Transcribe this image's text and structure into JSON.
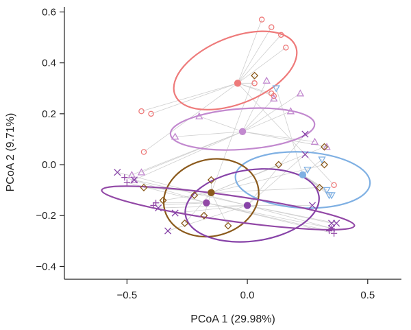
{
  "chart_data": {
    "type": "scatter",
    "title": "",
    "xlabel": "PCoA 1 (29.98%)",
    "ylabel": "PCoA 2 (9.71%)",
    "xlim": [
      -0.76,
      0.64
    ],
    "ylim": [
      -0.45,
      0.62
    ],
    "xticks": [
      -0.5,
      0.0,
      0.5
    ],
    "xtick_labels": [
      "−0.5",
      "0.0",
      "0.5"
    ],
    "yticks": [
      -0.4,
      -0.2,
      0.0,
      0.2,
      0.4,
      0.6
    ],
    "ytick_labels": [
      "−0.4",
      "−0.2",
      "0.0",
      "0.2",
      "0.4",
      "0.6"
    ],
    "grid": false,
    "legend": "none",
    "series": [
      {
        "marker": "circle",
        "color": "#ee7a7a",
        "centroid": [
          -0.04,
          0.32
        ],
        "ellipse": {
          "cx": -0.05,
          "cy": 0.37,
          "rx": 0.27,
          "ry": 0.13,
          "angle": 22
        },
        "points": [
          [
            0.06,
            0.57
          ],
          [
            0.1,
            0.54
          ],
          [
            0.14,
            0.51
          ],
          [
            0.16,
            0.46
          ],
          [
            0.03,
            0.32
          ],
          [
            0.1,
            0.28
          ],
          [
            0.11,
            0.27
          ],
          [
            -0.44,
            0.21
          ],
          [
            -0.4,
            0.2
          ],
          [
            -0.43,
            0.05
          ],
          [
            0.36,
            -0.08
          ]
        ]
      },
      {
        "marker": "triangle-up",
        "color": "#c289cf",
        "centroid": [
          -0.02,
          0.13
        ],
        "ellipse": {
          "cx": -0.02,
          "cy": 0.14,
          "rx": 0.3,
          "ry": 0.08,
          "angle": 4
        },
        "points": [
          [
            0.08,
            0.33
          ],
          [
            0.22,
            0.28
          ],
          [
            0.11,
            0.26
          ],
          [
            0.18,
            0.21
          ],
          [
            -0.2,
            0.19
          ],
          [
            -0.3,
            0.11
          ],
          [
            0.28,
            0.09
          ],
          [
            0.33,
            0.07
          ],
          [
            -0.44,
            -0.03
          ],
          [
            -0.48,
            -0.04
          ],
          [
            -0.47,
            -0.06
          ]
        ]
      },
      {
        "marker": "triangle-down",
        "color": "#7fb0e3",
        "centroid": [
          0.23,
          -0.04
        ],
        "ellipse": {
          "cx": 0.23,
          "cy": -0.06,
          "rx": 0.28,
          "ry": 0.11,
          "angle": -3
        },
        "points": [
          [
            0.12,
            0.3
          ],
          [
            0.31,
            0.02
          ],
          [
            0.25,
            -0.02
          ],
          [
            0.33,
            -0.1
          ],
          [
            0.35,
            -0.12
          ],
          [
            0.34,
            -0.12
          ]
        ]
      },
      {
        "marker": "diamond",
        "color": "#8b5a1c",
        "centroid": [
          -0.15,
          -0.11
        ],
        "ellipse": {
          "cx": -0.15,
          "cy": -0.13,
          "rx": 0.2,
          "ry": 0.15,
          "angle": 15
        },
        "points": [
          [
            0.03,
            0.35
          ],
          [
            0.13,
            0.0
          ],
          [
            0.32,
            0.07
          ],
          [
            0.32,
            0.0
          ],
          [
            0.3,
            -0.09
          ],
          [
            -0.15,
            -0.06
          ],
          [
            -0.43,
            -0.09
          ],
          [
            -0.22,
            -0.12
          ],
          [
            -0.35,
            -0.14
          ],
          [
            -0.18,
            -0.2
          ],
          [
            -0.26,
            -0.23
          ],
          [
            -0.08,
            -0.24
          ]
        ]
      },
      {
        "marker": "x",
        "color": "#8743a8",
        "centroid": [
          0.0,
          -0.16
        ],
        "ellipse": {
          "cx": 0.02,
          "cy": -0.16,
          "rx": 0.28,
          "ry": 0.14,
          "angle": 8
        },
        "points": [
          [
            0.24,
            0.12
          ],
          [
            0.24,
            0.04
          ],
          [
            -0.54,
            -0.03
          ],
          [
            -0.47,
            -0.06
          ],
          [
            0.27,
            -0.16
          ],
          [
            -0.37,
            -0.17
          ],
          [
            -0.3,
            -0.19
          ],
          [
            -0.33,
            -0.26
          ],
          [
            0.35,
            -0.23
          ],
          [
            0.37,
            -0.23
          ],
          [
            0.35,
            -0.25
          ]
        ]
      },
      {
        "marker": "plus",
        "color": "#9248a6",
        "centroid": [
          -0.17,
          -0.15
        ],
        "ellipse": {
          "cx": -0.08,
          "cy": -0.17,
          "rx": 0.53,
          "ry": 0.05,
          "angle": -8
        },
        "points": [
          [
            -0.51,
            -0.05
          ],
          [
            -0.5,
            -0.07
          ],
          [
            -0.38,
            -0.15
          ],
          [
            -0.39,
            -0.16
          ],
          [
            0.35,
            -0.25
          ],
          [
            0.36,
            -0.27
          ],
          [
            0.34,
            -0.26
          ]
        ]
      }
    ]
  }
}
